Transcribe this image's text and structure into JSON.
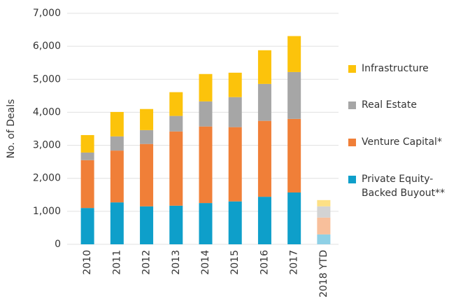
{
  "chart_data": {
    "type": "stacked_bar",
    "y_label": "No. of Deals",
    "categories": [
      "2010",
      "2011",
      "2012",
      "2013",
      "2014",
      "2015",
      "2016",
      "2017",
      "2018 YTD"
    ],
    "series": [
      {
        "name": "Private Equity-Backed Buyout**",
        "color": "#0e9fca",
        "light_color": "#8ed0e6",
        "values": [
          1100,
          1270,
          1150,
          1170,
          1250,
          1300,
          1440,
          1570,
          300
        ]
      },
      {
        "name": "Venture Capital*",
        "color": "#f07f38",
        "light_color": "#f8bf9b",
        "values": [
          1450,
          1570,
          1890,
          2250,
          2320,
          2250,
          2300,
          2230,
          510
        ]
      },
      {
        "name": "Real Estate",
        "color": "#a6a6a6",
        "light_color": "#d3d3d3",
        "values": [
          230,
          430,
          420,
          470,
          760,
          910,
          1120,
          1420,
          340
        ]
      },
      {
        "name": "Infrastructure",
        "color": "#fcc30b",
        "light_color": "#fde085",
        "values": [
          530,
          740,
          640,
          720,
          830,
          740,
          1020,
          1090,
          190
        ]
      }
    ],
    "light_categories": [
      "2018 YTD"
    ],
    "ylim": [
      0,
      7000
    ],
    "yticks": [
      0,
      {
        "value": 1000,
        "label": "1,000"
      },
      {
        "value": 2000,
        "label": "2,000"
      },
      {
        "value": 3000,
        "label": "3,000"
      },
      {
        "value": 4000,
        "label": "4,000"
      },
      {
        "value": 5000,
        "label": "5,000"
      },
      {
        "value": 6000,
        "label": "6,000"
      },
      {
        "value": 7000,
        "label": "7,000"
      }
    ],
    "grid": true,
    "legend": "right"
  }
}
